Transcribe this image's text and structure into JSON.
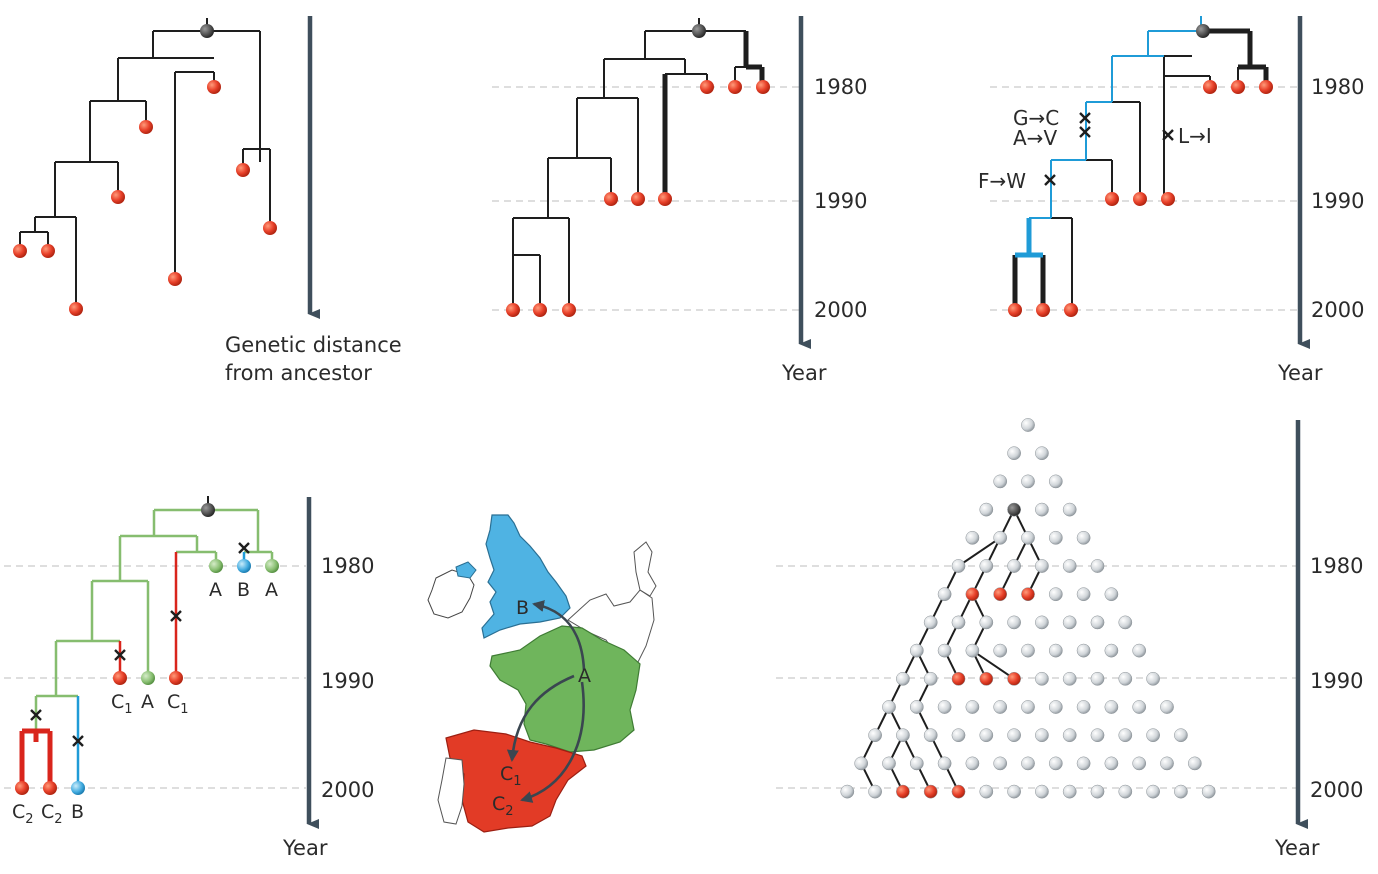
{
  "colors": {
    "leaf_red": "#e8412a",
    "root_dark": "#5a5a5a",
    "branch_blue": "#1f9bd7",
    "branch_green": "#86bd6f",
    "branch_red": "#d9251c",
    "axis": "#3f4f5c",
    "grid_circle": "#cfd4d8",
    "uk_blue": "#4fb3e3",
    "france_green": "#6fb55c",
    "spain_red": "#e23b26"
  },
  "panel_a": {
    "axis_caption_line1": "Genetic distance",
    "axis_caption_line2": "from ancestor"
  },
  "panel_b": {
    "ticks": [
      "1980",
      "1990",
      "2000"
    ],
    "axis_caption": "Year"
  },
  "panel_c": {
    "ticks": [
      "1980",
      "1990",
      "2000"
    ],
    "axis_caption": "Year",
    "mutations": [
      "G→C",
      "A→V",
      "L→I",
      "F→W"
    ]
  },
  "panel_d": {
    "ticks": [
      "1980",
      "1990",
      "2000"
    ],
    "axis_caption": "Year",
    "leaves_1980": [
      "A",
      "B",
      "A"
    ],
    "leaves_1990": [
      "C",
      "A",
      "C"
    ],
    "leaves_1990_subs": [
      "1",
      "",
      "1"
    ],
    "leaves_2000": [
      "C",
      "C",
      "B"
    ],
    "leaves_2000_subs": [
      "2",
      "2",
      ""
    ]
  },
  "panel_e": {
    "map_labels": [
      "B",
      "A",
      "C",
      "C"
    ],
    "map_label_subs": [
      "",
      "",
      "1",
      "2"
    ]
  },
  "panel_f": {
    "ticks": [
      "1980",
      "1990",
      "2000"
    ],
    "axis_caption": "Year"
  }
}
